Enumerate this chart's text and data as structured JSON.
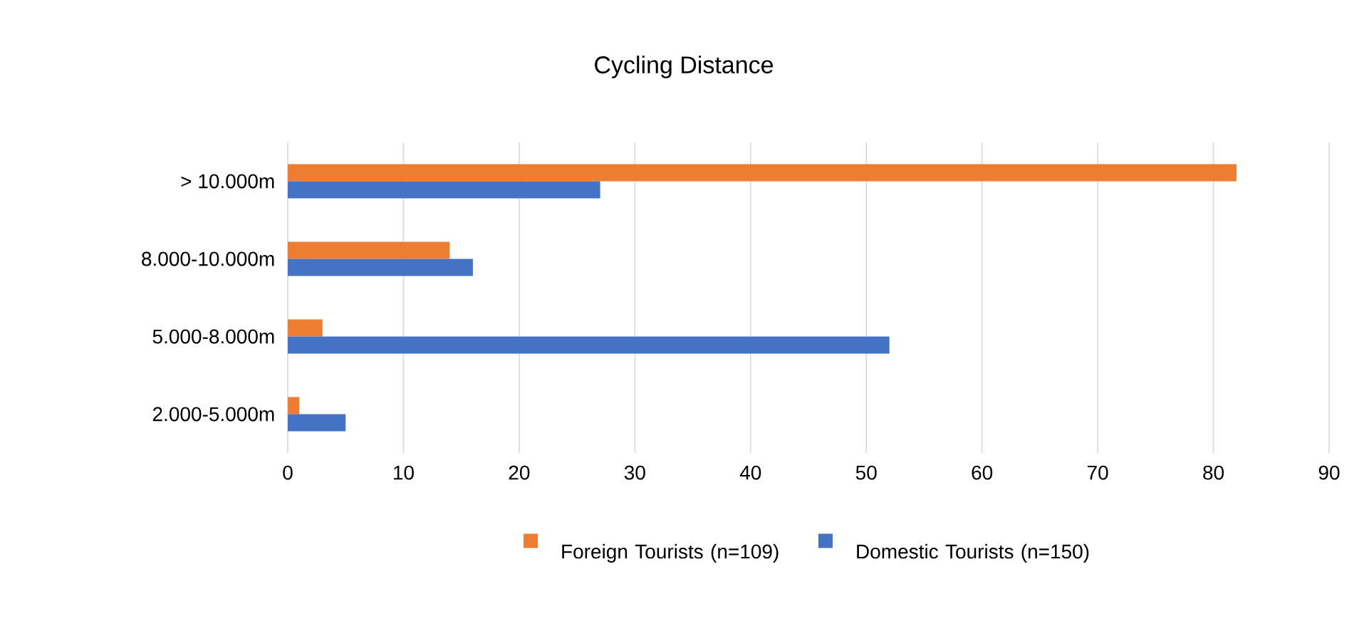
{
  "chart_data": {
    "type": "bar",
    "orientation": "horizontal",
    "title": "Cycling Distance",
    "categories": [
      "> 10.000m",
      "8.000-10.000m",
      "5.000-8.000m",
      "2.000-5.000m"
    ],
    "series": [
      {
        "name": "Foreign Tourists (n=109)",
        "color": "#ed7d31",
        "values": [
          82,
          14,
          3,
          1
        ]
      },
      {
        "name": "Domestic Tourists (n=150)",
        "color": "#4472c4",
        "values": [
          27,
          16,
          52,
          5
        ]
      }
    ],
    "xlim": [
      0,
      90
    ],
    "xticks": [
      0,
      10,
      20,
      30,
      40,
      50,
      60,
      70,
      80,
      90
    ],
    "grid": "x",
    "legend": "bottom"
  }
}
